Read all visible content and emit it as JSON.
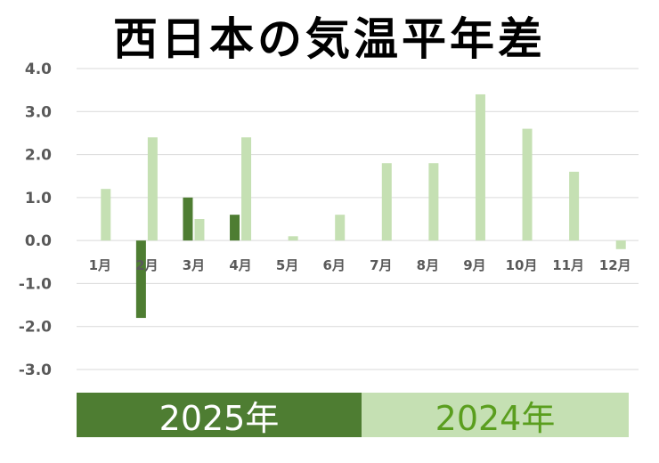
{
  "chart_data": {
    "type": "bar",
    "title": "西日本の気温平年差",
    "categories": [
      "1月",
      "2月",
      "3月",
      "4月",
      "5月",
      "6月",
      "7月",
      "8月",
      "9月",
      "10月",
      "11月",
      "12月"
    ],
    "series": [
      {
        "name": "2025年",
        "color": "#4e7d32",
        "values": [
          null,
          -1.8,
          1.0,
          0.6,
          null,
          null,
          null,
          null,
          null,
          null,
          null,
          null
        ]
      },
      {
        "name": "2024年",
        "color": "#c5e0b3",
        "values": [
          1.2,
          2.4,
          0.5,
          2.4,
          0.1,
          0.6,
          1.8,
          1.8,
          3.4,
          2.6,
          1.6,
          -0.2
        ]
      }
    ],
    "ylim": [
      -3.0,
      4.0
    ],
    "yticks": [
      "4.0",
      "3.0",
      "2.0",
      "1.0",
      "0.0",
      "-1.0",
      "-2.0",
      "-3.0"
    ],
    "grid": true,
    "legend_position": "bottom"
  }
}
